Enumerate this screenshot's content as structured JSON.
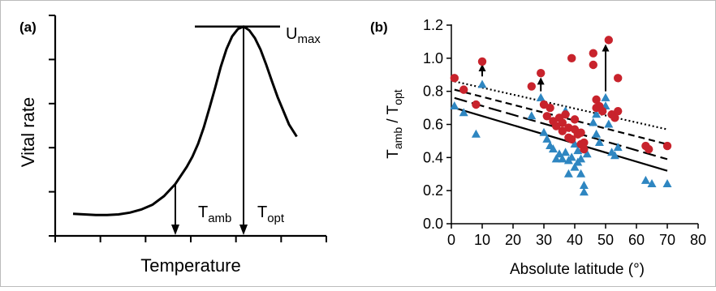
{
  "chart_data": [
    {
      "panel": "(a)",
      "type": "line",
      "xlabel": "Temperature",
      "ylabel": "Vital rate",
      "annotations": {
        "umax": {
          "main": "U",
          "sub": "max"
        },
        "tamb": {
          "main": "T",
          "sub": "amb"
        },
        "topt": {
          "main": "T",
          "sub": "opt"
        }
      },
      "curve": {
        "x": [
          0.0,
          0.5,
          1.0,
          1.5,
          2.0,
          2.5,
          3.0,
          3.5,
          4.0,
          4.5,
          5.0,
          5.25,
          5.5,
          5.75,
          6.0,
          6.25,
          6.5,
          6.75,
          7.0,
          7.25,
          7.5,
          7.75,
          8.0,
          8.25,
          8.5,
          8.75,
          9.0,
          9.5,
          9.84
        ],
        "y": [
          0.03,
          0.02,
          0.01,
          0.01,
          0.02,
          0.05,
          0.1,
          0.18,
          0.32,
          0.52,
          0.8,
          0.97,
          1.18,
          1.45,
          1.77,
          2.1,
          2.45,
          2.74,
          2.95,
          3.07,
          3.11,
          3.05,
          2.92,
          2.73,
          2.48,
          2.21,
          1.95,
          1.5,
          1.3
        ]
      },
      "tamb_x": 4.5,
      "topt_x": 7.5,
      "umax_y": 3.11
    },
    {
      "panel": "(b)",
      "type": "scatter",
      "xlabel": "Absolute latitude (°)",
      "ylabel": {
        "main": "T",
        "sub1": "amb",
        "sep": " / T",
        "sub2": "opt"
      },
      "xlim": [
        0,
        80
      ],
      "ylim": [
        0,
        1.2
      ],
      "xticks": [
        "0",
        "10",
        "20",
        "30",
        "40",
        "50",
        "60",
        "70",
        "80"
      ],
      "yticks": [
        "0.0",
        "0.2",
        "0.4",
        "0.6",
        "0.8",
        "1.0",
        "1.2"
      ],
      "colors": {
        "circle": "#c8232c",
        "triangle": "#2e86c1",
        "line": "#000000"
      },
      "series": [
        {
          "marker": "circle",
          "points": [
            [
              1,
              0.88
            ],
            [
              4,
              0.81
            ],
            [
              8,
              0.72
            ],
            [
              10,
              0.98
            ],
            [
              26,
              0.83
            ],
            [
              29,
              0.91
            ],
            [
              30,
              0.72
            ],
            [
              31,
              0.65
            ],
            [
              32,
              0.7
            ],
            [
              33,
              0.62
            ],
            [
              34,
              0.59
            ],
            [
              35,
              0.64
            ],
            [
              36,
              0.61
            ],
            [
              36,
              0.56
            ],
            [
              37,
              0.66
            ],
            [
              38,
              0.58
            ],
            [
              38,
              0.52
            ],
            [
              39,
              0.51
            ],
            [
              39,
              1.0
            ],
            [
              40,
              0.63
            ],
            [
              40,
              0.57
            ],
            [
              41,
              0.54
            ],
            [
              42,
              0.48
            ],
            [
              42,
              0.55
            ],
            [
              43,
              0.45
            ],
            [
              43,
              0.49
            ],
            [
              46,
              1.03
            ],
            [
              46,
              0.96
            ],
            [
              47,
              0.75
            ],
            [
              47,
              0.7
            ],
            [
              48,
              0.71
            ],
            [
              49,
              0.68
            ],
            [
              51,
              1.11
            ],
            [
              52,
              0.66
            ],
            [
              53,
              0.64
            ],
            [
              54,
              0.88
            ],
            [
              54,
              0.68
            ],
            [
              63,
              0.47
            ],
            [
              64,
              0.45
            ],
            [
              70,
              0.47
            ]
          ]
        },
        {
          "marker": "triangle",
          "points": [
            [
              1,
              0.71
            ],
            [
              4,
              0.67
            ],
            [
              8,
              0.54
            ],
            [
              10,
              0.84
            ],
            [
              26,
              0.65
            ],
            [
              29,
              0.76
            ],
            [
              30,
              0.55
            ],
            [
              31,
              0.51
            ],
            [
              32,
              0.47
            ],
            [
              33,
              0.45
            ],
            [
              34,
              0.39
            ],
            [
              35,
              0.42
            ],
            [
              36,
              0.39
            ],
            [
              37,
              0.68
            ],
            [
              37,
              0.43
            ],
            [
              38,
              0.38
            ],
            [
              38,
              0.3
            ],
            [
              39,
              0.4
            ],
            [
              40,
              0.48
            ],
            [
              40,
              0.34
            ],
            [
              41,
              0.37
            ],
            [
              41,
              0.44
            ],
            [
              42,
              0.39
            ],
            [
              42,
              0.3
            ],
            [
              43,
              0.23
            ],
            [
              43,
              0.19
            ],
            [
              44,
              0.42
            ],
            [
              46,
              0.61
            ],
            [
              47,
              0.66
            ],
            [
              47,
              0.54
            ],
            [
              48,
              0.49
            ],
            [
              50,
              0.71
            ],
            [
              50,
              0.76
            ],
            [
              51,
              0.6
            ],
            [
              52,
              0.43
            ],
            [
              53,
              0.41
            ],
            [
              54,
              0.46
            ],
            [
              63,
              0.26
            ],
            [
              65,
              0.24
            ],
            [
              70,
              0.24
            ]
          ]
        }
      ],
      "arrows": [
        {
          "x": 10,
          "y_from": 0.89,
          "y_to": 0.96
        },
        {
          "x": 29,
          "y_from": 0.8,
          "y_to": 0.88
        },
        {
          "x": 50,
          "y_from": 0.8,
          "y_to": 1.08
        }
      ],
      "fit_lines": [
        {
          "style": "dotted",
          "x": [
            1,
            70
          ],
          "y": [
            0.86,
            0.57
          ]
        },
        {
          "style": "dashed",
          "x": [
            1,
            70
          ],
          "y": [
            0.81,
            0.48
          ]
        },
        {
          "style": "long-dash",
          "x": [
            1,
            70
          ],
          "y": [
            0.76,
            0.39
          ]
        },
        {
          "style": "solid",
          "x": [
            1,
            70
          ],
          "y": [
            0.7,
            0.32
          ]
        }
      ]
    }
  ]
}
